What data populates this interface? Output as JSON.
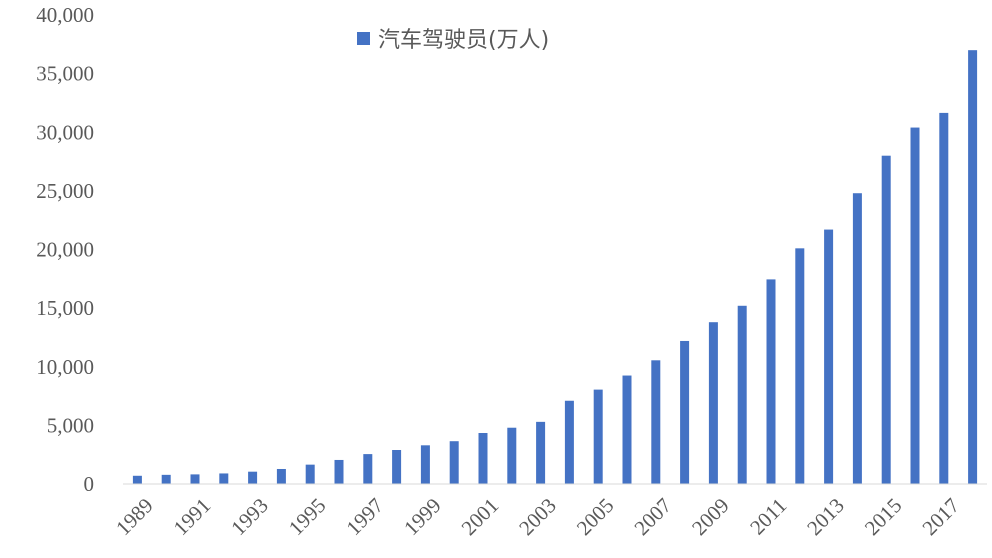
{
  "chart_data": {
    "type": "bar",
    "title": "",
    "xlabel": "",
    "ylabel": "",
    "ylim": [
      0,
      40000
    ],
    "yticks": [
      0,
      5000,
      10000,
      15000,
      20000,
      25000,
      30000,
      35000,
      40000
    ],
    "ytick_labels": [
      "0",
      "5,000",
      "10,000",
      "15,000",
      "20,000",
      "25,000",
      "30,000",
      "35,000",
      "40,000"
    ],
    "categories": [
      "1989",
      "1990",
      "1991",
      "1992",
      "1993",
      "1994",
      "1995",
      "1996",
      "1997",
      "1998",
      "1999",
      "2000",
      "2001",
      "2002",
      "2003",
      "2004",
      "2005",
      "2006",
      "2007",
      "2008",
      "2009",
      "2010",
      "2011",
      "2012",
      "2013",
      "2014",
      "2015",
      "2016",
      "2017",
      "2018"
    ],
    "xtick_labels": [
      "1989",
      "1991",
      "1993",
      "1995",
      "1997",
      "1999",
      "2001",
      "2003",
      "2005",
      "2007",
      "2009",
      "2011",
      "2013",
      "2015",
      "2017"
    ],
    "series": [
      {
        "name": "汽车驾驶员(万人)",
        "color": "#4472C4",
        "values": [
          700,
          780,
          820,
          900,
          1050,
          1280,
          1650,
          2050,
          2550,
          2900,
          3300,
          3650,
          4350,
          4800,
          5300,
          7100,
          8050,
          9250,
          10550,
          12200,
          13800,
          15200,
          17450,
          20100,
          21700,
          24800,
          28000,
          30400,
          31650,
          37000
        ]
      }
    ],
    "legend_position": "top-center",
    "grid": false
  }
}
